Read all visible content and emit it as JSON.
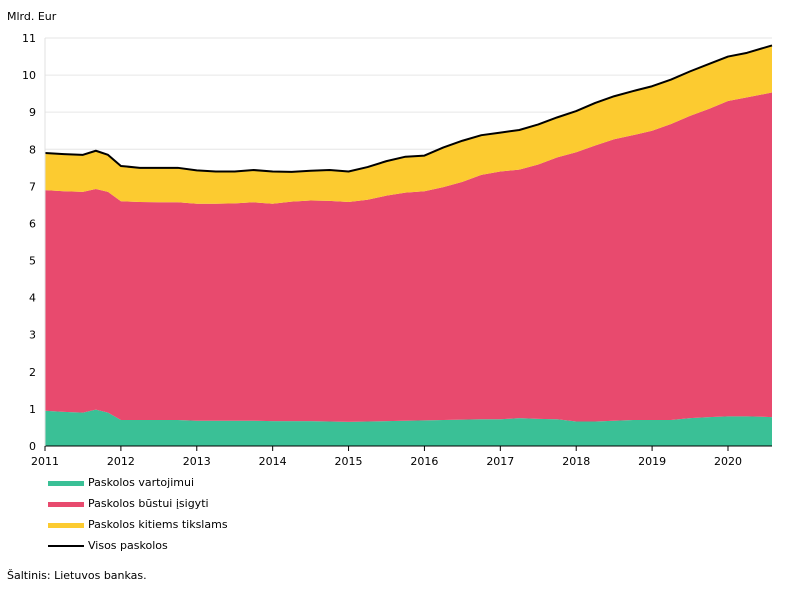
{
  "chart_data": {
    "type": "area",
    "ylabel": "Mlrd. Eur",
    "ylim": [
      0,
      11
    ],
    "yticks": [
      "0",
      "1",
      "2",
      "3",
      "4",
      "5",
      "6",
      "7",
      "8",
      "9",
      "10",
      "11"
    ],
    "xlim": [
      2011,
      2020.58
    ],
    "xticks": [
      "2011",
      "2012",
      "2013",
      "2014",
      "2015",
      "2016",
      "2017",
      "2018",
      "2019",
      "2020"
    ],
    "grid": true,
    "legend_position": "bottom",
    "stacked": true,
    "x": [
      2011.0,
      2011.25,
      2011.5,
      2011.67,
      2011.83,
      2012.0,
      2012.25,
      2012.5,
      2012.75,
      2013.0,
      2013.25,
      2013.5,
      2013.75,
      2014.0,
      2014.25,
      2014.5,
      2014.75,
      2015.0,
      2015.25,
      2015.5,
      2015.75,
      2016.0,
      2016.25,
      2016.5,
      2016.75,
      2017.0,
      2017.25,
      2017.5,
      2017.75,
      2018.0,
      2018.25,
      2018.5,
      2018.75,
      2019.0,
      2019.25,
      2019.5,
      2019.75,
      2020.0,
      2020.25,
      2020.58
    ],
    "series": [
      {
        "name": "Paskolos vartojimui",
        "color": "#3ac096",
        "values": [
          0.95,
          0.92,
          0.9,
          0.98,
          0.9,
          0.7,
          0.7,
          0.7,
          0.7,
          0.68,
          0.68,
          0.68,
          0.68,
          0.67,
          0.67,
          0.67,
          0.66,
          0.65,
          0.66,
          0.67,
          0.68,
          0.69,
          0.7,
          0.71,
          0.72,
          0.72,
          0.75,
          0.73,
          0.72,
          0.66,
          0.66,
          0.68,
          0.7,
          0.7,
          0.7,
          0.75,
          0.78,
          0.8,
          0.8,
          0.78
        ]
      },
      {
        "name": "Paskolos būstui įsigyti",
        "color": "#e84a6e",
        "values": [
          5.95,
          5.95,
          5.95,
          5.95,
          5.95,
          5.9,
          5.88,
          5.87,
          5.87,
          5.85,
          5.85,
          5.86,
          5.89,
          5.86,
          5.92,
          5.95,
          5.95,
          5.93,
          5.98,
          6.08,
          6.15,
          6.18,
          6.28,
          6.41,
          6.59,
          6.68,
          6.7,
          6.86,
          7.06,
          7.26,
          7.44,
          7.59,
          7.68,
          7.8,
          7.98,
          8.15,
          8.31,
          8.5,
          8.6,
          8.75
        ]
      },
      {
        "name": "Paskolos kitiems tikslams",
        "color": "#fccb30",
        "values": [
          1.0,
          1.0,
          1.0,
          1.03,
          1.0,
          0.95,
          0.92,
          0.93,
          0.93,
          0.9,
          0.87,
          0.86,
          0.87,
          0.87,
          0.8,
          0.8,
          0.83,
          0.82,
          0.88,
          0.93,
          0.97,
          0.96,
          1.07,
          1.11,
          1.07,
          1.05,
          1.07,
          1.08,
          1.08,
          1.11,
          1.15,
          1.16,
          1.19,
          1.2,
          1.2,
          1.2,
          1.21,
          1.2,
          1.2,
          1.27
        ]
      },
      {
        "name": "Visos paskolos",
        "color": "#000000",
        "kind": "line",
        "values": [
          7.9,
          7.87,
          7.85,
          7.96,
          7.85,
          7.55,
          7.5,
          7.5,
          7.5,
          7.43,
          7.4,
          7.4,
          7.44,
          7.4,
          7.39,
          7.42,
          7.44,
          7.4,
          7.52,
          7.68,
          7.8,
          7.83,
          8.05,
          8.23,
          8.38,
          8.45,
          8.52,
          8.67,
          8.86,
          9.03,
          9.25,
          9.43,
          9.57,
          9.7,
          9.88,
          10.1,
          10.3,
          10.5,
          10.6,
          10.8
        ]
      }
    ]
  },
  "source": "Šaltinis: Lietuvos bankas."
}
